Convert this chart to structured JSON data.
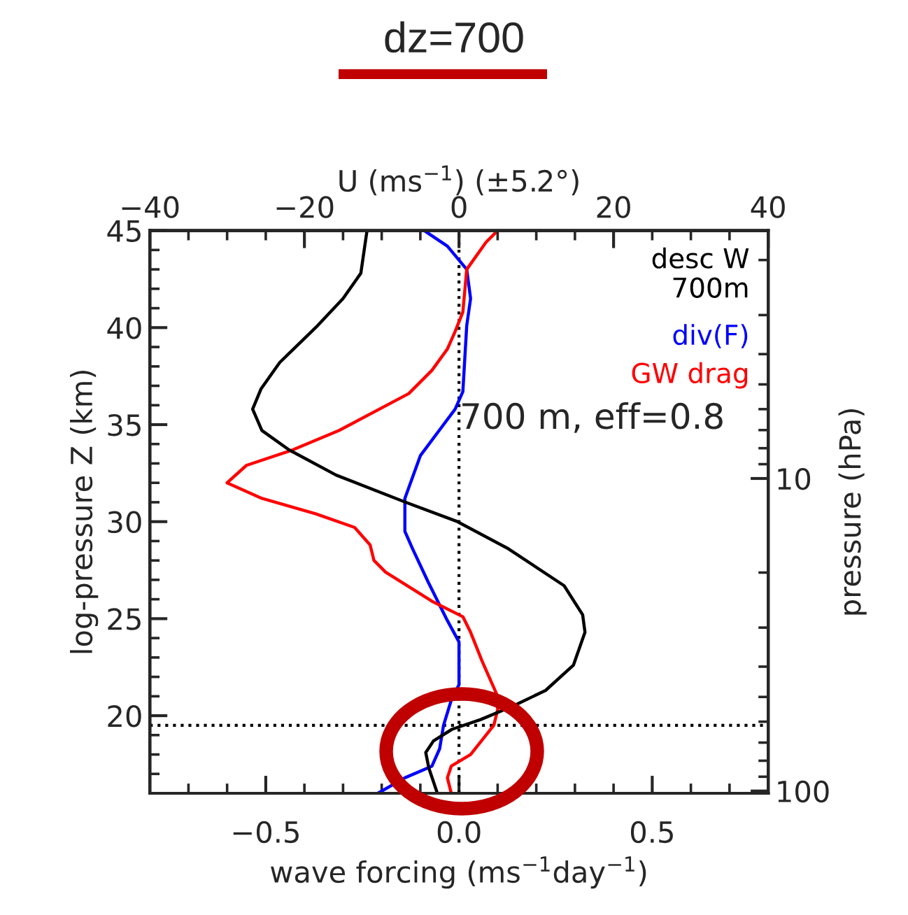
{
  "chart_data": {
    "type": "line",
    "title": "dz=700",
    "xlabel": "wave forcing (ms$^{−1}$day$^{−1}$)",
    "x2label": "U (ms$^{−1}$) (±5.2°)",
    "ylabel": "log-pressure Z (km)",
    "y2label": "pressure (hPa)",
    "xlim": [
      -0.8,
      0.8
    ],
    "xticks": [
      {
        "value": -0.5,
        "label": "−0.5"
      },
      {
        "value": 0,
        "label": "0.0"
      },
      {
        "value": 0.5,
        "label": "0.5"
      },
      {
        "value": -0.8,
        "label": null
      },
      {
        "value": -0.7,
        "label": null
      },
      {
        "value": -0.6,
        "label": null
      },
      {
        "value": -0.4,
        "label": null
      },
      {
        "value": -0.3,
        "label": null
      },
      {
        "value": -0.2,
        "label": null
      },
      {
        "value": -0.1,
        "label": null
      },
      {
        "value": 0.1,
        "label": null
      },
      {
        "value": 0.2,
        "label": null
      },
      {
        "value": 0.3,
        "label": null
      },
      {
        "value": 0.4,
        "label": null
      },
      {
        "value": 0.6,
        "label": null
      },
      {
        "value": 0.7,
        "label": null
      },
      {
        "value": 0.8,
        "label": null
      }
    ],
    "x2lim": [
      -40,
      40
    ],
    "x2ticks": [
      {
        "value": -40,
        "label": "−40"
      },
      {
        "value": -20,
        "label": "−20"
      },
      0,
      20,
      40,
      {
        "value": -35,
        "label": null
      },
      {
        "value": -30,
        "label": null
      },
      {
        "value": -25,
        "label": null
      },
      {
        "value": -15,
        "label": null
      },
      {
        "value": -10,
        "label": null
      },
      {
        "value": -5,
        "label": null
      },
      {
        "value": 5,
        "label": null
      },
      {
        "value": 10,
        "label": null
      },
      {
        "value": 15,
        "label": null
      },
      {
        "value": 25,
        "label": null
      },
      {
        "value": 30,
        "label": null
      },
      {
        "value": 35,
        "label": null
      }
    ],
    "ylim": [
      16,
      45
    ],
    "yticks": [
      20,
      25,
      30,
      35,
      40,
      45,
      {
        "value": 17,
        "label": null
      },
      {
        "value": 18,
        "label": null
      },
      {
        "value": 19,
        "label": null
      },
      {
        "value": 21,
        "label": null
      },
      {
        "value": 22,
        "label": null
      },
      {
        "value": 23,
        "label": null
      },
      {
        "value": 24,
        "label": null
      },
      {
        "value": 26,
        "label": null
      },
      {
        "value": 27,
        "label": null
      },
      {
        "value": 28,
        "label": null
      },
      {
        "value": 29,
        "label": null
      },
      {
        "value": 31,
        "label": null
      },
      {
        "value": 32,
        "label": null
      },
      {
        "value": 33,
        "label": null
      },
      {
        "value": 34,
        "label": null
      },
      {
        "value": 36,
        "label": null
      },
      {
        "value": 37,
        "label": null
      },
      {
        "value": 38,
        "label": null
      },
      {
        "value": 39,
        "label": null
      },
      {
        "value": 41,
        "label": null
      },
      {
        "value": 42,
        "label": null
      },
      {
        "value": 43,
        "label": null
      },
      {
        "value": 44,
        "label": null
      }
    ],
    "y2lim": [
      101.7,
      1.61
    ],
    "log": "y2",
    "y2ticks": [
      10,
      100,
      {
        "value": 2,
        "label": null
      },
      {
        "value": 3,
        "label": null
      },
      {
        "value": 4,
        "label": null
      },
      {
        "value": 5,
        "label": null
      },
      {
        "value": 6,
        "label": null
      },
      {
        "value": 7,
        "label": null
      },
      {
        "value": 8,
        "label": null
      },
      {
        "value": 9,
        "label": null
      },
      {
        "value": 20,
        "label": null
      },
      {
        "value": 30,
        "label": null
      },
      {
        "value": 40,
        "label": null
      },
      {
        "value": 50,
        "label": null
      },
      {
        "value": 60,
        "label": null
      },
      {
        "value": 70,
        "label": null
      },
      {
        "value": 80,
        "label": null
      },
      {
        "value": 90,
        "label": null
      }
    ],
    "grid": false,
    "legend": "top right",
    "line_style": "solid",
    "marker": "none",
    "ref_lines": [
      {
        "axis": "y",
        "value": 19.5,
        "line_style": "dotted",
        "color": "#000000"
      },
      {
        "axis": "x",
        "value": 0,
        "line_style": "dotted",
        "color": "#000000"
      }
    ],
    "annotations": [
      "700 m, eff=0.8"
    ],
    "series": [
      {
        "name": "desc W\n700m",
        "color": "#000000",
        "axis": "x2",
        "x": [
          -11.9,
          -12.7,
          -15.0,
          -18.3,
          -23.2,
          -25.6,
          -26.7,
          -25.5,
          -22.0,
          -15.9,
          -6.9,
          -0.2,
          6.4,
          13.6,
          16.0,
          16.3,
          14.8,
          11.2,
          7.0,
          2.8,
          -0.9,
          -3.3,
          -4.3,
          -3.9,
          -2.8
        ],
        "values": [
          45,
          42.8,
          41.5,
          40.1,
          38.2,
          36.85,
          35.8,
          34.7,
          33.7,
          32.4,
          31.0,
          30.0,
          28.6,
          26.7,
          25.2,
          24.3,
          22.6,
          21.3,
          20.5,
          19.8,
          19.3,
          18.7,
          18.1,
          17.3,
          16
        ]
      },
      {
        "name": "div(F)",
        "color": "#0000ff",
        "x": [
          -0.09,
          -0.03,
          0.02,
          0.03,
          0.02,
          0.01,
          -0.01,
          -0.04,
          -0.1,
          -0.14,
          -0.14,
          -0.12,
          -0.08,
          -0.03,
          0.0,
          0.0,
          -0.02,
          -0.04,
          -0.05,
          -0.07,
          -0.14,
          -0.21
        ],
        "values": [
          45,
          44.2,
          43.0,
          41.5,
          40.1,
          36.7,
          35.8,
          35.0,
          33.4,
          31.2,
          29.5,
          28.6,
          26.9,
          24.9,
          23.8,
          21.6,
          20.8,
          19.5,
          18.3,
          17.4,
          16.8,
          16
        ]
      },
      {
        "name": "GW drag",
        "color": "#ff0000",
        "x": [
          0.1,
          0.07,
          0.02,
          0.01,
          -0.01,
          -0.03,
          -0.07,
          -0.13,
          -0.31,
          -0.43,
          -0.55,
          -0.6,
          -0.51,
          -0.37,
          -0.27,
          -0.23,
          -0.22,
          -0.19,
          -0.07,
          0.01,
          0.03,
          0.06,
          0.1,
          0.1,
          0.09,
          0.03,
          -0.02,
          -0.03,
          -0.02
        ],
        "values": [
          45,
          44.4,
          43.0,
          40.8,
          39.8,
          38.9,
          37.8,
          36.6,
          34.7,
          33.7,
          32.9,
          32.0,
          31.2,
          30.4,
          29.7,
          28.8,
          28.0,
          27.4,
          25.9,
          25.1,
          24.3,
          22.8,
          21.0,
          20.3,
          19.5,
          18.0,
          17.4,
          16.8,
          16
        ]
      }
    ]
  }
}
